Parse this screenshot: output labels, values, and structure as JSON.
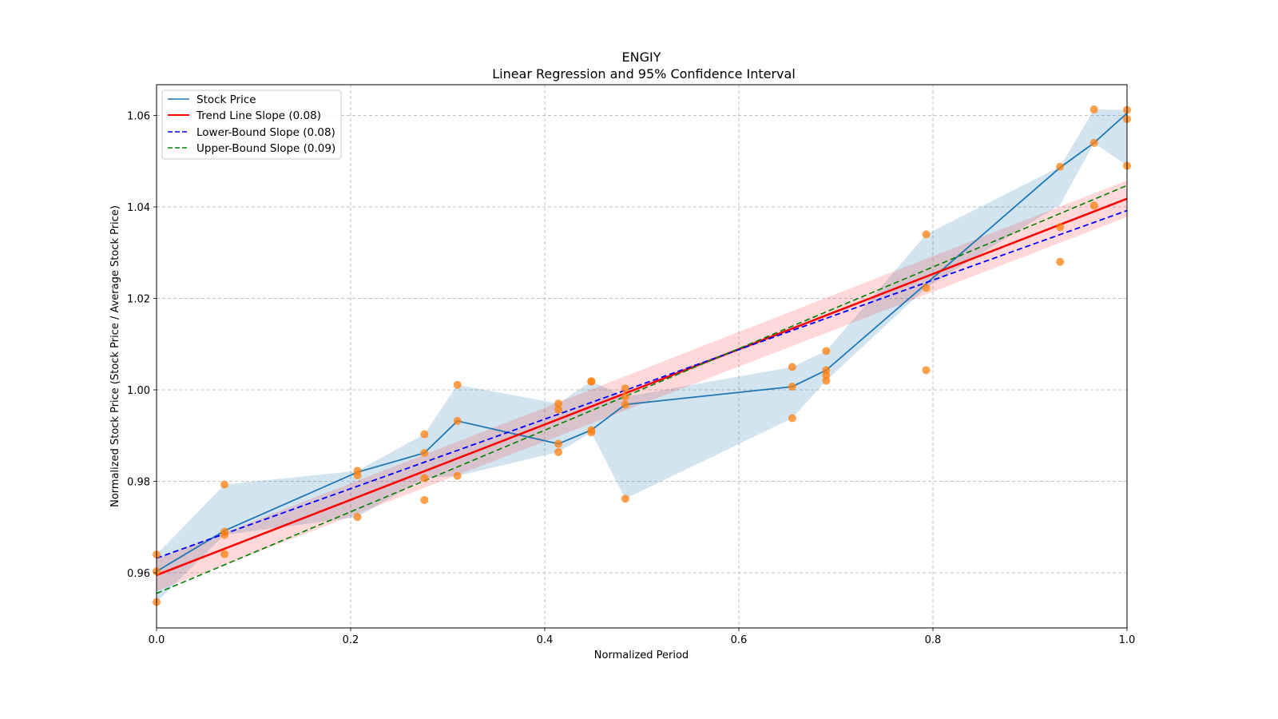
{
  "chart_data": {
    "type": "line",
    "title": "ENGIY",
    "subtitle": "Linear Regression and 95% Confidence Interval",
    "xlabel": "Normalized Period",
    "ylabel": "Normalized Stock Price (Stock Price / Average Stock Price)",
    "xlim": [
      0.0,
      1.0
    ],
    "ylim": [
      0.948,
      1.067
    ],
    "xticks": [
      0.0,
      0.2,
      0.4,
      0.6,
      0.8,
      1.0
    ],
    "xtick_labels": [
      "0.0",
      "0.2",
      "0.4",
      "0.6",
      "0.8",
      "1.0"
    ],
    "yticks": [
      0.96,
      0.98,
      1.0,
      1.02,
      1.04,
      1.06
    ],
    "ytick_labels": [
      "0.96",
      "0.98",
      "1.00",
      "1.02",
      "1.04",
      "1.06"
    ],
    "grid": true,
    "legend_position": "top-left",
    "legend": [
      {
        "label": "Stock Price",
        "color": "#1f77b4",
        "style": "solid"
      },
      {
        "label": "Trend Line Slope (0.08)",
        "color": "#ff0000",
        "style": "solid"
      },
      {
        "label": "Lower-Bound Slope (0.08)",
        "color": "#0000ff",
        "style": "dashed"
      },
      {
        "label": "Upper-Bound Slope (0.09)",
        "color": "#008000",
        "style": "dashed"
      }
    ],
    "series": [
      {
        "name": "Stock Price",
        "color": "#1f77b4",
        "x": [
          0.0,
          0.07,
          0.207,
          0.276,
          0.31,
          0.414,
          0.448,
          0.483,
          0.655,
          0.69,
          0.793,
          0.931,
          0.966,
          1.0
        ],
        "y": [
          0.9603,
          0.9692,
          0.982,
          0.9862,
          0.9932,
          0.9882,
          0.9912,
          0.9968,
          1.0007,
          1.0043,
          1.0232,
          1.0486,
          1.054,
          1.0605
        ]
      },
      {
        "name": "Stock Price band upper",
        "color": "#1f77b4",
        "x": [
          0.0,
          0.07,
          0.207,
          0.276,
          0.31,
          0.414,
          0.448,
          0.483,
          0.655,
          0.69,
          0.793,
          0.931,
          0.966,
          1.0
        ],
        "y": [
          0.964,
          0.9793,
          0.9823,
          0.9903,
          1.0011,
          0.997,
          1.0019,
          0.9985,
          1.005,
          1.0085,
          1.034,
          1.0488,
          1.0613,
          1.0612
        ]
      },
      {
        "name": "Stock Price band lower",
        "color": "#1f77b4",
        "x": [
          0.0,
          0.07,
          0.207,
          0.276,
          0.31,
          0.414,
          0.448,
          0.483,
          0.655,
          0.69,
          0.793,
          0.931,
          0.966,
          1.0
        ],
        "y": [
          0.9536,
          0.9683,
          0.9722,
          0.9807,
          0.9812,
          0.9864,
          0.9907,
          0.9762,
          0.9938,
          1.002,
          1.0223,
          1.0405,
          1.054,
          1.049
        ]
      },
      {
        "name": "Trend Line Slope (0.08)",
        "color": "#ff0000",
        "x": [
          0.0,
          1.0
        ],
        "y": [
          0.9595,
          1.0418
        ]
      },
      {
        "name": "Trend band",
        "color": "#ff0000",
        "x": [
          0.0,
          1.0
        ],
        "y_upper": [
          0.963,
          1.0458
        ],
        "y_lower": [
          0.956,
          1.0378
        ]
      },
      {
        "name": "Lower-Bound Slope (0.08)",
        "color": "#0000ff",
        "x": [
          0.0,
          1.0
        ],
        "y": [
          0.9632,
          1.0392
        ]
      },
      {
        "name": "Upper-Bound Slope (0.09)",
        "color": "#008000",
        "x": [
          0.0,
          1.0
        ],
        "y": [
          0.9555,
          1.0447
        ]
      }
    ],
    "scatter": {
      "name": "Observations",
      "color": "#ff7f0e",
      "points": [
        [
          0.0,
          0.964
        ],
        [
          0.0,
          0.9603
        ],
        [
          0.0,
          0.9536
        ],
        [
          0.07,
          0.9793
        ],
        [
          0.07,
          0.969
        ],
        [
          0.07,
          0.9683
        ],
        [
          0.07,
          0.9641
        ],
        [
          0.207,
          0.9823
        ],
        [
          0.207,
          0.9813
        ],
        [
          0.207,
          0.9722
        ],
        [
          0.276,
          0.9903
        ],
        [
          0.276,
          0.9862
        ],
        [
          0.276,
          0.9807
        ],
        [
          0.276,
          0.9759
        ],
        [
          0.31,
          1.0011
        ],
        [
          0.31,
          0.9932
        ],
        [
          0.31,
          0.9812
        ],
        [
          0.414,
          0.997
        ],
        [
          0.414,
          0.9957
        ],
        [
          0.414,
          0.9882
        ],
        [
          0.414,
          0.9864
        ],
        [
          0.448,
          1.0019
        ],
        [
          0.448,
          1.0018
        ],
        [
          0.448,
          0.9912
        ],
        [
          0.448,
          0.9907
        ],
        [
          0.483,
          1.0003
        ],
        [
          0.483,
          0.9985
        ],
        [
          0.483,
          0.9968
        ],
        [
          0.483,
          0.9762
        ],
        [
          0.655,
          1.005
        ],
        [
          0.655,
          1.0007
        ],
        [
          0.655,
          0.9938
        ],
        [
          0.69,
          1.0085
        ],
        [
          0.69,
          1.0043
        ],
        [
          0.69,
          1.0032
        ],
        [
          0.69,
          1.002
        ],
        [
          0.793,
          1.034
        ],
        [
          0.793,
          1.0223
        ],
        [
          0.793,
          1.0043
        ],
        [
          0.931,
          1.0488
        ],
        [
          0.931,
          1.0356
        ],
        [
          0.931,
          1.028
        ],
        [
          0.966,
          1.0613
        ],
        [
          0.966,
          1.054
        ],
        [
          0.966,
          1.0403
        ],
        [
          1.0,
          1.0612
        ],
        [
          1.0,
          1.0592
        ],
        [
          1.0,
          1.049
        ]
      ]
    }
  }
}
